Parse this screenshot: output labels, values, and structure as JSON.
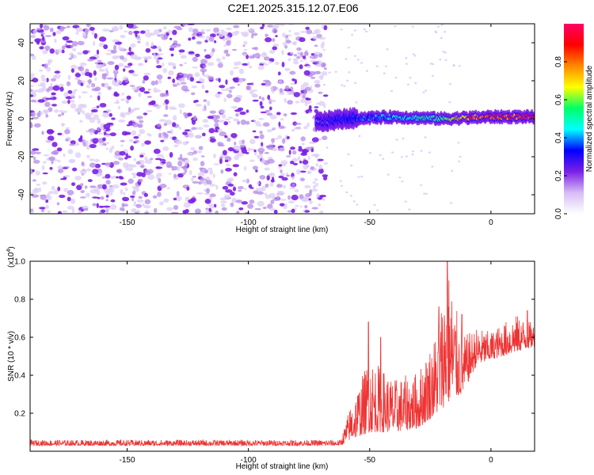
{
  "title": "C2E1.2025.315.12.07.E06",
  "chart_data": [
    {
      "type": "heatmap",
      "name": "spectrogram",
      "xlabel": "Height of straight line (km)",
      "ylabel": "Frequency (Hz)",
      "xlim": [
        -190,
        18
      ],
      "ylim": [
        -50,
        50
      ],
      "xticks": [
        -150,
        -100,
        -50,
        0
      ],
      "xtick_labels": [
        "-150",
        "-100",
        "-50",
        "0"
      ],
      "yticks": [
        -40,
        -20,
        0,
        20,
        40
      ],
      "ytick_labels": [
        "-40",
        "-20",
        "0",
        "20",
        "40"
      ],
      "colorbar": {
        "label": "Normalized spectral amplitude",
        "range": [
          0,
          1
        ],
        "ticks": [
          0,
          0.2,
          0.4,
          0.6,
          0.8
        ],
        "tick_labels": [
          "0.0",
          "0.2",
          "0.4",
          "0.6",
          "0.8"
        ],
        "colormap": [
          "#ffffff",
          "#d6bcf5",
          "#7b1fe6",
          "#0000ff",
          "#00ffff",
          "#00ff66",
          "#ffff00",
          "#ff8800",
          "#ff0000",
          "#ff0066"
        ]
      },
      "noise_region": {
        "x_range": [
          -190,
          -72
        ],
        "freq_range": [
          -50,
          50
        ],
        "amplitude": 0.1
      },
      "signal_band": {
        "x_range": [
          -72,
          18
        ],
        "center_freq": [
          {
            "x": -72,
            "f": -2
          },
          {
            "x": -60,
            "f": 0
          },
          {
            "x": -40,
            "f": 1
          },
          {
            "x": -20,
            "f": 0
          },
          {
            "x": 0,
            "f": 1
          },
          {
            "x": 18,
            "f": 1
          }
        ],
        "peak_amplitude": [
          {
            "x": -72,
            "a": 0.2
          },
          {
            "x": -60,
            "a": 0.35
          },
          {
            "x": -40,
            "a": 0.45
          },
          {
            "x": -20,
            "a": 0.55
          },
          {
            "x": -8,
            "a": 0.9
          },
          {
            "x": 18,
            "a": 0.95
          }
        ]
      }
    },
    {
      "type": "line",
      "name": "snr",
      "xlabel": "Height of straight line (km)",
      "ylabel": "SNR (10 * v/v)",
      "scale_label": "(x10",
      "scale_exp": "4",
      "scale_close": ")",
      "xlim": [
        -190,
        18
      ],
      "ylim": [
        0,
        1.0
      ],
      "xticks": [
        -150,
        -100,
        -50,
        0
      ],
      "xtick_labels": [
        "-150",
        "-100",
        "-50",
        "0"
      ],
      "yticks": [
        0.2,
        0.4,
        0.6,
        0.8,
        1.0
      ],
      "ytick_labels": [
        "0.2",
        "0.4",
        "0.6",
        "0.8",
        "1.0"
      ],
      "color": "#ee3333",
      "envelope": [
        {
          "x": -190,
          "base": 0.03,
          "amp": 0.03
        },
        {
          "x": -62,
          "base": 0.03,
          "amp": 0.03
        },
        {
          "x": -58,
          "base": 0.06,
          "amp": 0.18
        },
        {
          "x": -50,
          "base": 0.1,
          "amp": 0.4
        },
        {
          "x": -40,
          "base": 0.1,
          "amp": 0.28
        },
        {
          "x": -30,
          "base": 0.12,
          "amp": 0.3
        },
        {
          "x": -22,
          "base": 0.2,
          "amp": 0.45
        },
        {
          "x": -18,
          "base": 0.25,
          "amp": 0.75
        },
        {
          "x": -12,
          "base": 0.3,
          "amp": 0.3
        },
        {
          "x": -6,
          "base": 0.45,
          "amp": 0.2
        },
        {
          "x": 0,
          "base": 0.48,
          "amp": 0.15
        },
        {
          "x": 10,
          "base": 0.52,
          "amp": 0.2
        },
        {
          "x": 18,
          "base": 0.55,
          "amp": 0.12
        }
      ],
      "peaks": [
        {
          "x": -50.5,
          "y": 0.68
        },
        {
          "x": -45.5,
          "y": 0.6
        },
        {
          "x": -21.5,
          "y": 0.76
        },
        {
          "x": -18,
          "y": 1.0
        },
        {
          "x": -12,
          "y": 0.72
        },
        {
          "x": 15,
          "y": 0.74
        }
      ]
    }
  ]
}
